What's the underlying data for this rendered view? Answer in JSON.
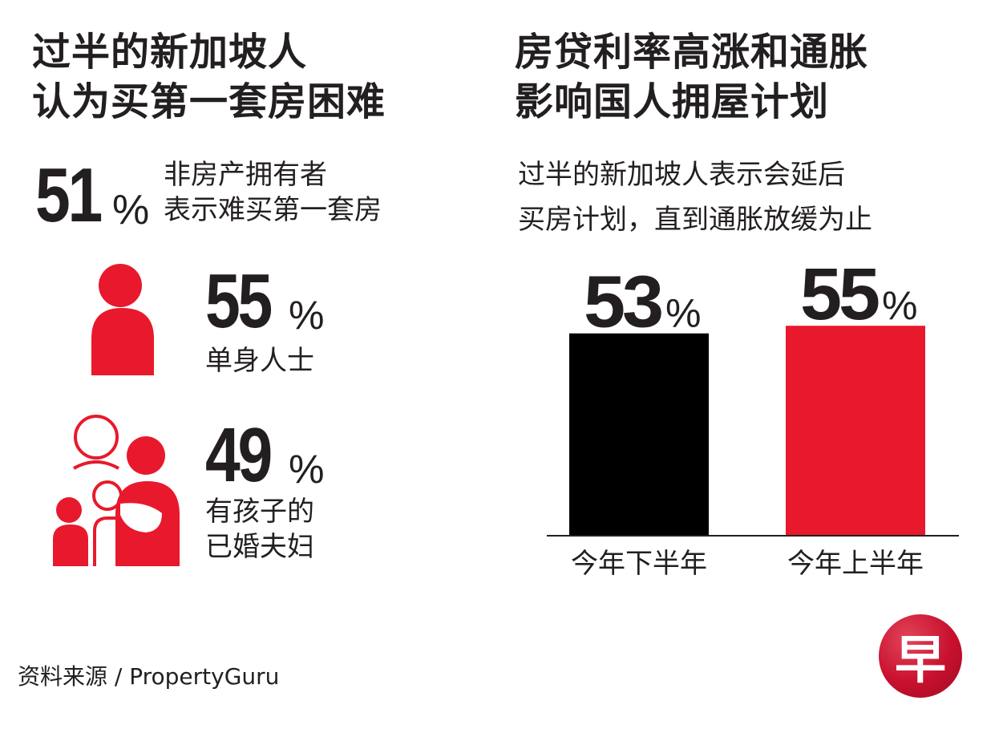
{
  "left": {
    "title_lines": [
      "过半的新加坡人",
      "认为买第一套房困难"
    ],
    "headline": {
      "number": "51",
      "pct": "%",
      "desc_lines": [
        "非房产拥有者",
        "表示难买第一套房"
      ]
    },
    "stats": [
      {
        "number": "55",
        "pct": "%",
        "label_lines": [
          "单身人士"
        ],
        "icon": "single-person-icon"
      },
      {
        "number": "49",
        "pct": "%",
        "label_lines": [
          "有孩子的",
          "已婚夫妇"
        ],
        "icon": "family-icon"
      }
    ]
  },
  "right": {
    "title_lines": [
      "房贷利率高涨和通胀",
      "影响国人拥屋计划"
    ],
    "subtitle_lines": [
      "过半的新加坡人表示会延后",
      "买房计划，直到通胀放缓为止"
    ]
  },
  "chart_data": {
    "type": "bar",
    "title": "房贷利率高涨和通胀影响国人拥屋计划",
    "subtitle": "过半的新加坡人表示会延后买房计划，直到通胀放缓为止",
    "categories": [
      "今年下半年",
      "今年上半年"
    ],
    "values": [
      53,
      55
    ],
    "value_labels": [
      "53",
      "55"
    ],
    "unit": "%",
    "colors": [
      "#000000",
      "#e8192c"
    ],
    "ylim": [
      0,
      100
    ],
    "grid": false
  },
  "colors": {
    "red": "#e8192c",
    "dark": "#231f20",
    "black": "#000000"
  },
  "source": "资料来源 / PropertyGuru",
  "logo": {
    "char": "早",
    "icon": "zaobao-logo-icon"
  }
}
